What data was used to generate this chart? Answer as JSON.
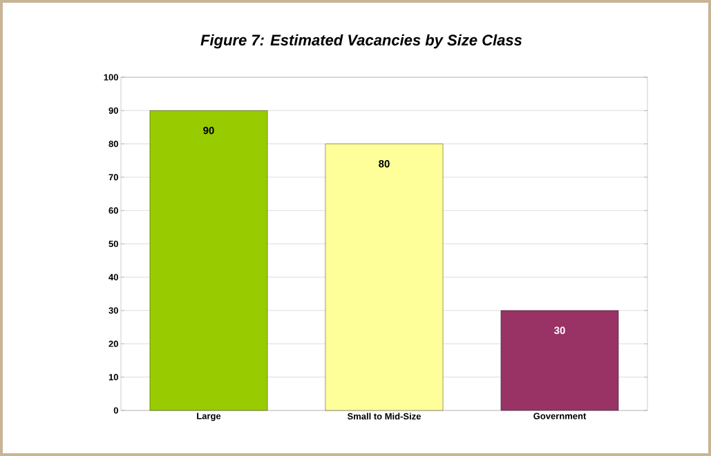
{
  "chart_data": {
    "type": "bar",
    "title": "Figure 7: Estimated Vacancies by Size Class",
    "categories": [
      "Large",
      "Small to Mid-Size",
      "Government"
    ],
    "values": [
      90,
      80,
      30
    ],
    "colors": [
      "#99cc00",
      "#ffff99",
      "#993366"
    ],
    "ylim": [
      0,
      100
    ],
    "yticks": [
      0,
      10,
      20,
      30,
      40,
      50,
      60,
      70,
      80,
      90,
      100
    ],
    "grid": "y",
    "data_labels": true
  }
}
